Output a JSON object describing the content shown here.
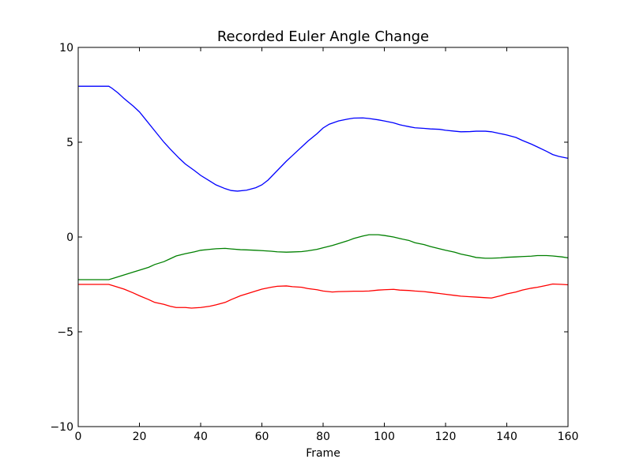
{
  "chart_data": {
    "type": "line",
    "title": "Recorded Euler Angle Change",
    "xlabel": "Frame",
    "ylabel": "",
    "xlim": [
      0,
      160
    ],
    "ylim": [
      -10,
      10
    ],
    "xticks": [
      0,
      20,
      40,
      60,
      80,
      100,
      120,
      140,
      160
    ],
    "yticks": [
      -10,
      -5,
      0,
      5,
      10
    ],
    "xtick_labels": [
      "0",
      "20",
      "40",
      "60",
      "80",
      "100",
      "120",
      "140",
      "160"
    ],
    "ytick_labels": [
      "−10",
      "−5",
      "0",
      "5",
      "10"
    ],
    "grid": false,
    "legend": "none",
    "series": [
      {
        "color": "#0000ff",
        "x": [
          0,
          5,
          10,
          11,
          13,
          15,
          18,
          20,
          22,
          25,
          28,
          30,
          33,
          35,
          38,
          40,
          43,
          45,
          48,
          50,
          52,
          55,
          58,
          60,
          62,
          65,
          68,
          70,
          73,
          75,
          78,
          80,
          82,
          85,
          88,
          90,
          93,
          95,
          98,
          100,
          103,
          105,
          108,
          110,
          113,
          115,
          118,
          120,
          123,
          125,
          128,
          130,
          133,
          135,
          138,
          140,
          143,
          145,
          148,
          150,
          153,
          155,
          157,
          160
        ],
        "y": [
          7.95,
          7.95,
          7.95,
          7.85,
          7.6,
          7.3,
          6.9,
          6.6,
          6.2,
          5.6,
          5.0,
          4.65,
          4.15,
          3.85,
          3.5,
          3.25,
          2.95,
          2.75,
          2.55,
          2.45,
          2.42,
          2.47,
          2.6,
          2.75,
          3.0,
          3.5,
          4.0,
          4.3,
          4.75,
          5.05,
          5.45,
          5.75,
          5.95,
          6.12,
          6.22,
          6.27,
          6.28,
          6.25,
          6.18,
          6.12,
          6.02,
          5.92,
          5.82,
          5.76,
          5.73,
          5.7,
          5.68,
          5.63,
          5.58,
          5.55,
          5.56,
          5.58,
          5.58,
          5.55,
          5.45,
          5.38,
          5.25,
          5.1,
          4.9,
          4.75,
          4.52,
          4.35,
          4.25,
          4.15
        ]
      },
      {
        "color": "#008000",
        "x": [
          0,
          5,
          10,
          12,
          15,
          18,
          20,
          23,
          25,
          28,
          30,
          32,
          35,
          38,
          40,
          43,
          45,
          48,
          50,
          53,
          55,
          58,
          60,
          63,
          65,
          68,
          70,
          73,
          75,
          78,
          80,
          83,
          85,
          88,
          90,
          93,
          95,
          98,
          100,
          103,
          105,
          108,
          110,
          113,
          115,
          118,
          120,
          123,
          125,
          128,
          130,
          133,
          135,
          138,
          140,
          143,
          145,
          148,
          150,
          153,
          155,
          158,
          160
        ],
        "y": [
          -2.25,
          -2.25,
          -2.25,
          -2.15,
          -2.0,
          -1.85,
          -1.75,
          -1.6,
          -1.45,
          -1.3,
          -1.15,
          -1.0,
          -0.88,
          -0.78,
          -0.7,
          -0.65,
          -0.62,
          -0.6,
          -0.63,
          -0.67,
          -0.68,
          -0.7,
          -0.72,
          -0.75,
          -0.78,
          -0.8,
          -0.79,
          -0.77,
          -0.73,
          -0.65,
          -0.57,
          -0.45,
          -0.35,
          -0.2,
          -0.08,
          0.05,
          0.12,
          0.12,
          0.08,
          0.0,
          -0.08,
          -0.18,
          -0.3,
          -0.4,
          -0.5,
          -0.62,
          -0.7,
          -0.8,
          -0.9,
          -1.0,
          -1.08,
          -1.12,
          -1.12,
          -1.1,
          -1.07,
          -1.05,
          -1.03,
          -1.01,
          -0.98,
          -0.98,
          -1.0,
          -1.05,
          -1.1
        ]
      },
      {
        "color": "#ff0000",
        "x": [
          0,
          5,
          10,
          12,
          15,
          18,
          20,
          23,
          25,
          28,
          30,
          32,
          35,
          37,
          40,
          43,
          45,
          48,
          50,
          53,
          55,
          58,
          60,
          63,
          65,
          68,
          70,
          73,
          75,
          78,
          80,
          83,
          85,
          88,
          90,
          93,
          95,
          98,
          100,
          103,
          105,
          108,
          110,
          113,
          115,
          118,
          120,
          123,
          125,
          128,
          130,
          133,
          135,
          138,
          140,
          143,
          145,
          148,
          150,
          153,
          155,
          158,
          160
        ],
        "y": [
          -2.5,
          -2.5,
          -2.5,
          -2.6,
          -2.75,
          -2.95,
          -3.1,
          -3.3,
          -3.45,
          -3.55,
          -3.65,
          -3.72,
          -3.72,
          -3.75,
          -3.72,
          -3.65,
          -3.58,
          -3.45,
          -3.3,
          -3.1,
          -3.0,
          -2.85,
          -2.75,
          -2.65,
          -2.6,
          -2.58,
          -2.62,
          -2.65,
          -2.72,
          -2.78,
          -2.85,
          -2.9,
          -2.88,
          -2.87,
          -2.86,
          -2.86,
          -2.85,
          -2.8,
          -2.78,
          -2.76,
          -2.8,
          -2.82,
          -2.85,
          -2.88,
          -2.92,
          -2.98,
          -3.02,
          -3.08,
          -3.12,
          -3.15,
          -3.17,
          -3.2,
          -3.22,
          -3.1,
          -3.0,
          -2.9,
          -2.8,
          -2.7,
          -2.65,
          -2.55,
          -2.48,
          -2.5,
          -2.52
        ]
      }
    ]
  }
}
